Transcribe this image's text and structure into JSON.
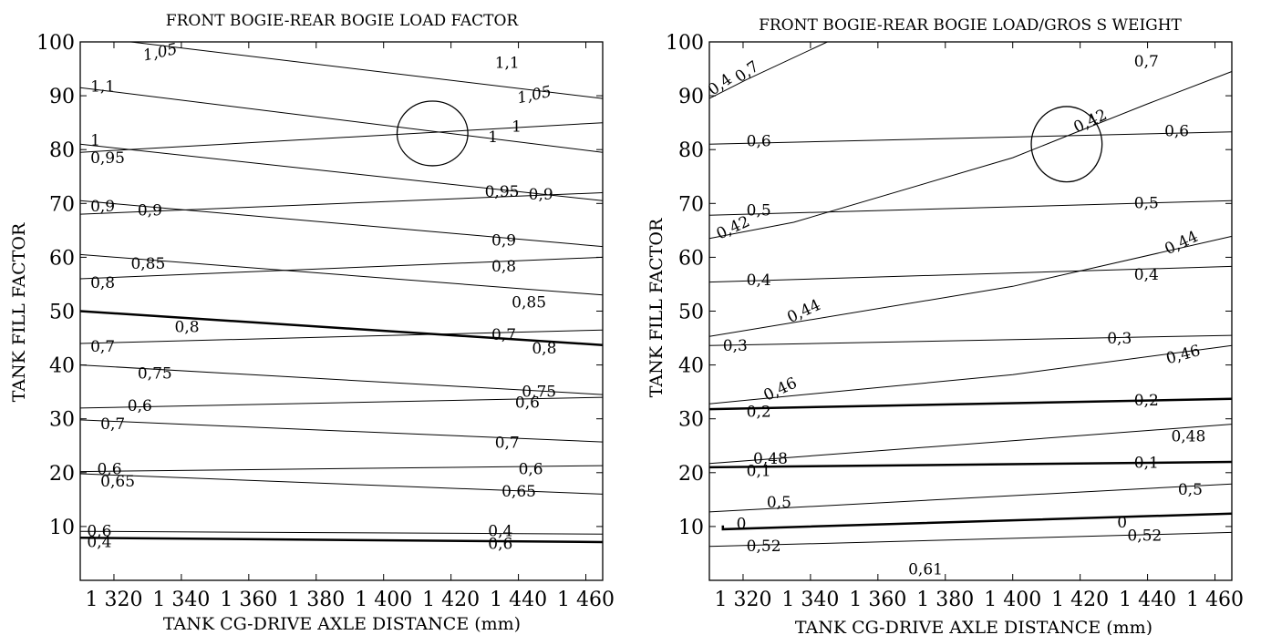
{
  "chart_data": [
    {
      "type": "line",
      "title": "FRONT BOGIE-REAR BOGIE LOAD FACTOR",
      "xlabel": "TANK CG-DRIVE AXLE DISTANCE (mm)",
      "ylabel": "TANK FILL FACTOR",
      "xlim": [
        1310,
        1465
      ],
      "ylim": [
        0,
        100
      ],
      "xticks": [
        1320,
        1340,
        1360,
        1380,
        1400,
        1420,
        1440,
        1460
      ],
      "xtick_labels": [
        "1 320",
        "1 340",
        "1 360",
        "1 380",
        "1 400",
        "1 420",
        "1 440",
        "1 460"
      ],
      "yticks": [
        10,
        20,
        30,
        40,
        50,
        60,
        70,
        80,
        90,
        100
      ],
      "ytick_labels": [
        "10",
        "20",
        "30",
        "40",
        "50",
        "60",
        "70",
        "80",
        "90",
        "100"
      ],
      "grid": false,
      "series": [
        {
          "x": [
            1325,
            1465
          ],
          "y": [
            100,
            89.5
          ],
          "width": 1
        },
        {
          "x": [
            1310,
            1465
          ],
          "y": [
            91.5,
            79.5
          ],
          "width": 1
        },
        {
          "x": [
            1310,
            1465
          ],
          "y": [
            79.5,
            85
          ],
          "width": 1
        },
        {
          "x": [
            1310,
            1465
          ],
          "y": [
            81,
            70.5
          ],
          "width": 1
        },
        {
          "x": [
            1310,
            1465
          ],
          "y": [
            70.5,
            62
          ],
          "width": 1
        },
        {
          "x": [
            1310,
            1465
          ],
          "y": [
            68,
            72
          ],
          "width": 1
        },
        {
          "x": [
            1310,
            1465
          ],
          "y": [
            60.5,
            53
          ],
          "width": 1
        },
        {
          "x": [
            1310,
            1465
          ],
          "y": [
            56,
            60
          ],
          "width": 1
        },
        {
          "x": [
            1310,
            1465
          ],
          "y": [
            50,
            43.7
          ],
          "width": 2.5
        },
        {
          "x": [
            1310,
            1465
          ],
          "y": [
            44,
            46.5
          ],
          "width": 1
        },
        {
          "x": [
            1310,
            1465
          ],
          "y": [
            40,
            34.5
          ],
          "width": 1
        },
        {
          "x": [
            1310,
            1465
          ],
          "y": [
            32,
            34
          ],
          "width": 1
        },
        {
          "x": [
            1310,
            1465
          ],
          "y": [
            29.8,
            25.7
          ],
          "width": 1
        },
        {
          "x": [
            1310,
            1465
          ],
          "y": [
            20.2,
            21.3
          ],
          "width": 1
        },
        {
          "x": [
            1310,
            1465
          ],
          "y": [
            19.8,
            16
          ],
          "width": 1
        },
        {
          "x": [
            1310,
            1465
          ],
          "y": [
            9.1,
            8.6
          ],
          "width": 1
        },
        {
          "x": [
            1310,
            1465
          ],
          "y": [
            7.9,
            7.1
          ],
          "width": 2.5
        }
      ],
      "annotations": [
        {
          "text": "1,05",
          "x": 1329,
          "y": 96.5,
          "italic": true,
          "rot": -12
        },
        {
          "text": "1,1",
          "x": 1433,
          "y": 95.2
        },
        {
          "text": "1,1",
          "x": 1313,
          "y": 90.8
        },
        {
          "text": "1,05",
          "x": 1440,
          "y": 88.6,
          "italic": true,
          "rot": -12
        },
        {
          "text": "1",
          "x": 1438,
          "y": 83.3
        },
        {
          "text": "1",
          "x": 1431,
          "y": 81.4
        },
        {
          "text": "1",
          "x": 1313,
          "y": 80.8
        },
        {
          "text": "0,95",
          "x": 1313,
          "y": 77.5
        },
        {
          "text": "0,95",
          "x": 1430,
          "y": 71.2
        },
        {
          "text": "0,9",
          "x": 1443,
          "y": 70.7
        },
        {
          "text": "0,9",
          "x": 1313,
          "y": 68.5
        },
        {
          "text": "0,9",
          "x": 1327,
          "y": 67.8
        },
        {
          "text": "0,9",
          "x": 1432,
          "y": 62.2
        },
        {
          "text": "0,85",
          "x": 1325,
          "y": 57.9
        },
        {
          "text": "0,8",
          "x": 1432,
          "y": 57.4
        },
        {
          "text": "0,8",
          "x": 1313,
          "y": 54.3
        },
        {
          "text": "0,85",
          "x": 1438,
          "y": 50.7
        },
        {
          "text": "0,8",
          "x": 1338,
          "y": 46.1
        },
        {
          "text": "0,7",
          "x": 1432,
          "y": 44.7
        },
        {
          "text": "0,7",
          "x": 1313,
          "y": 42.5
        },
        {
          "text": "0,8",
          "x": 1444,
          "y": 42.1
        },
        {
          "text": "0,75",
          "x": 1327,
          "y": 37.5
        },
        {
          "text": "0,75",
          "x": 1441,
          "y": 34.1
        },
        {
          "text": "0,6",
          "x": 1439,
          "y": 32.1
        },
        {
          "text": "0,6",
          "x": 1324,
          "y": 31.5
        },
        {
          "text": "0,7",
          "x": 1316,
          "y": 28.1
        },
        {
          "text": "0,7",
          "x": 1433,
          "y": 24.6
        },
        {
          "text": "0,6",
          "x": 1315,
          "y": 19.7
        },
        {
          "text": "0,6",
          "x": 1440,
          "y": 19.7
        },
        {
          "text": "0,65",
          "x": 1316,
          "y": 17.4
        },
        {
          "text": "0,65",
          "x": 1435,
          "y": 15.6
        },
        {
          "text": "0,6",
          "x": 1312,
          "y": 8.2
        },
        {
          "text": "0,4",
          "x": 1431,
          "y": 8.2
        },
        {
          "text": "0,4",
          "x": 1312,
          "y": 6.2
        },
        {
          "text": "0,6",
          "x": 1431,
          "y": 5.8
        }
      ],
      "ellipse": {
        "cx": 1414.5,
        "cy": 83,
        "rx": 10.5,
        "ry": 6
      }
    },
    {
      "type": "line",
      "title": "FRONT BOGIE-REAR BOGIE LOAD/GROS S WEIGHT",
      "xlabel": "TANK CG-DRIVE AXLE DISTANCE (mm)",
      "ylabel": "TANK FILL FACTOR",
      "xlim": [
        1310,
        1465
      ],
      "ylim": [
        0,
        100
      ],
      "xticks": [
        1320,
        1340,
        1360,
        1380,
        1400,
        1420,
        1440,
        1460
      ],
      "xtick_labels": [
        "1 320",
        "1 340",
        "1 360",
        "1 380",
        "1 400",
        "1 420",
        "1 440",
        "1 460"
      ],
      "yticks": [
        10,
        20,
        30,
        40,
        50,
        60,
        70,
        80,
        90,
        100
      ],
      "ytick_labels": [
        "10",
        "20",
        "30",
        "40",
        "50",
        "60",
        "70",
        "80",
        "90",
        "100"
      ],
      "grid": false,
      "series": [
        {
          "x": [
            1310,
            1321,
            1345
          ],
          "y": [
            89.5,
            93,
            100
          ],
          "width": 1
        },
        {
          "x": [
            1310,
            1465
          ],
          "y": [
            81,
            83.3
          ],
          "width": 1
        },
        {
          "x": [
            1310,
            1335,
            1400,
            1420,
            1440,
            1465
          ],
          "y": [
            63.5,
            66.5,
            78.5,
            83.5,
            88.5,
            94.5
          ],
          "width": 1
        },
        {
          "x": [
            1310,
            1465
          ],
          "y": [
            67.8,
            70.5
          ],
          "width": 1
        },
        {
          "x": [
            1310,
            1465
          ],
          "y": [
            55.4,
            58.3
          ],
          "width": 1
        },
        {
          "x": [
            1310,
            1400,
            1465
          ],
          "y": [
            45.3,
            54.6,
            63.9
          ],
          "width": 1
        },
        {
          "x": [
            1310,
            1465
          ],
          "y": [
            43.6,
            45.5
          ],
          "width": 1
        },
        {
          "x": [
            1310,
            1400,
            1465
          ],
          "y": [
            32.8,
            38.2,
            43.6
          ],
          "width": 1
        },
        {
          "x": [
            1310,
            1465
          ],
          "y": [
            31.8,
            33.7
          ],
          "width": 2.5
        },
        {
          "x": [
            1310,
            1465
          ],
          "y": [
            21.7,
            29
          ],
          "width": 1
        },
        {
          "x": [
            1310,
            1465
          ],
          "y": [
            21,
            22
          ],
          "width": 2.5
        },
        {
          "x": [
            1310,
            1465
          ],
          "y": [
            12.7,
            17.9
          ],
          "width": 1
        },
        {
          "x": [
            1314,
            1314,
            1465
          ],
          "y": [
            10.2,
            9.5,
            12.4
          ],
          "width": 2.5
        },
        {
          "x": [
            1310,
            1465
          ],
          "y": [
            6.3,
            8.9
          ],
          "width": 1
        }
      ],
      "annotations": [
        {
          "text": "0,4",
          "x": 1311,
          "y": 90,
          "rot": -35
        },
        {
          "text": "0,7",
          "x": 1319,
          "y": 92.4,
          "rot": -35
        },
        {
          "text": "0,7",
          "x": 1436,
          "y": 95.4
        },
        {
          "text": "0,42",
          "x": 1419,
          "y": 83.1,
          "rot": -25
        },
        {
          "text": "0,6",
          "x": 1321,
          "y": 80.6
        },
        {
          "text": "0,6",
          "x": 1445,
          "y": 82.5
        },
        {
          "text": "0,5",
          "x": 1321,
          "y": 67.8
        },
        {
          "text": "0,5",
          "x": 1436,
          "y": 69.1
        },
        {
          "text": "0,42",
          "x": 1313,
          "y": 63.3,
          "rot": -25
        },
        {
          "text": "0,44",
          "x": 1446,
          "y": 60.5,
          "rot": -25
        },
        {
          "text": "0,4",
          "x": 1321,
          "y": 54.8
        },
        {
          "text": "0,4",
          "x": 1436,
          "y": 55.8
        },
        {
          "text": "0,44",
          "x": 1334,
          "y": 47.8,
          "rot": -25
        },
        {
          "text": "0,3",
          "x": 1314,
          "y": 42.6
        },
        {
          "text": "0,3",
          "x": 1428,
          "y": 44
        },
        {
          "text": "0,46",
          "x": 1446,
          "y": 40.2,
          "rot": -15
        },
        {
          "text": "0,46",
          "x": 1327,
          "y": 33.3,
          "rot": -25
        },
        {
          "text": "0,2",
          "x": 1321,
          "y": 30.4
        },
        {
          "text": "0,2",
          "x": 1436,
          "y": 32.5
        },
        {
          "text": "0,48",
          "x": 1447,
          "y": 25.8
        },
        {
          "text": "0,48",
          "x": 1323,
          "y": 21.7
        },
        {
          "text": "0,1",
          "x": 1436,
          "y": 20.9
        },
        {
          "text": "0,1",
          "x": 1321,
          "y": 19.4
        },
        {
          "text": "0,5",
          "x": 1327,
          "y": 13.5
        },
        {
          "text": "0,5",
          "x": 1449,
          "y": 15.9
        },
        {
          "text": "0",
          "x": 1318,
          "y": 9.6
        },
        {
          "text": "0",
          "x": 1431,
          "y": 9.8
        },
        {
          "text": "0,52",
          "x": 1321,
          "y": 5.4
        },
        {
          "text": "0,52",
          "x": 1434,
          "y": 7.4
        },
        {
          "text": "0,61",
          "x": 1369,
          "y": 1.1
        }
      ],
      "ellipse": {
        "cx": 1416,
        "cy": 81,
        "rx": 10.5,
        "ry": 7
      }
    }
  ]
}
